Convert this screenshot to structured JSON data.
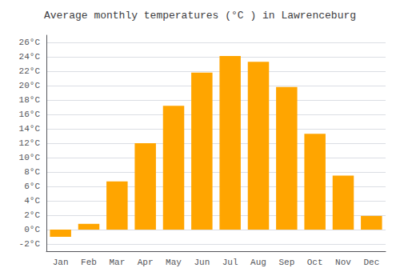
{
  "chart_data": {
    "type": "bar",
    "title": "Average monthly temperatures (°C ) in Lawrenceburg",
    "categories": [
      "Jan",
      "Feb",
      "Mar",
      "Apr",
      "May",
      "Jun",
      "Jul",
      "Aug",
      "Sep",
      "Oct",
      "Nov",
      "Dec"
    ],
    "values": [
      -1.0,
      0.8,
      6.7,
      12.0,
      17.2,
      21.8,
      24.1,
      23.3,
      19.8,
      13.3,
      7.5,
      1.9
    ],
    "color": "#FFA500",
    "ylim": [
      -3,
      27
    ],
    "yticks": [
      {
        "value": -2,
        "label": "-2°C"
      },
      {
        "value": 0,
        "label": "0°C"
      },
      {
        "value": 2,
        "label": "2°C"
      },
      {
        "value": 4,
        "label": "4°C"
      },
      {
        "value": 6,
        "label": "6°C"
      },
      {
        "value": 8,
        "label": "8°C"
      },
      {
        "value": 10,
        "label": "10°C"
      },
      {
        "value": 12,
        "label": "12°C"
      },
      {
        "value": 14,
        "label": "14°C"
      },
      {
        "value": 16,
        "label": "16°C"
      },
      {
        "value": 18,
        "label": "18°C"
      },
      {
        "value": 20,
        "label": "20°C"
      },
      {
        "value": 22,
        "label": "22°C"
      },
      {
        "value": 24,
        "label": "24°C"
      },
      {
        "value": 26,
        "label": "26°C"
      }
    ],
    "grid": true
  }
}
